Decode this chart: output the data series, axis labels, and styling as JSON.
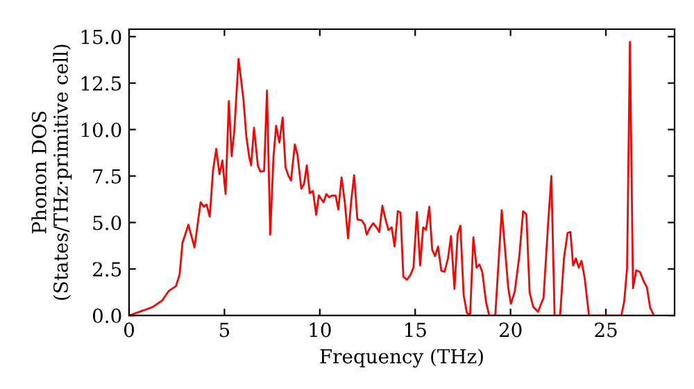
{
  "chart_data": {
    "type": "line",
    "xlabel": "Frequency (THz)",
    "ylabel": "Phonon DOS\n(States/THz·primitive cell)",
    "xlim": [
      0,
      28.6
    ],
    "ylim": [
      0,
      15.4
    ],
    "xticks": [
      0,
      5,
      10,
      15,
      20,
      25
    ],
    "yticks": [
      {
        "value": 0,
        "label": "0.0"
      },
      {
        "value": 2.5,
        "label": "2.5"
      },
      {
        "value": 5,
        "label": "5.0"
      },
      {
        "value": 7.5,
        "label": "7.5"
      },
      {
        "value": 10,
        "label": "10.0"
      },
      {
        "value": 12.5,
        "label": "12.5"
      },
      {
        "value": 15,
        "label": "15.0"
      }
    ],
    "grid": false,
    "marker": "none",
    "line_style": "solid",
    "series": [
      {
        "color": "#ff0000",
        "x": [
          0,
          0.75,
          1.24,
          1.73,
          2.09,
          2.46,
          2.65,
          2.8,
          3.11,
          3.43,
          3.75,
          3.92,
          4.06,
          4.23,
          4.4,
          4.57,
          4.74,
          4.89,
          5.06,
          5.23,
          5.38,
          5.52,
          5.74,
          5.99,
          6.15,
          6.3,
          6.4,
          6.55,
          6.75,
          6.88,
          7.08,
          7.23,
          7.4,
          7.57,
          7.71,
          7.88,
          8.05,
          8.2,
          8.34,
          8.49,
          8.69,
          8.83,
          9.03,
          9.17,
          9.32,
          9.47,
          9.64,
          9.81,
          9.95,
          10.05,
          10.2,
          10.34,
          10.49,
          10.64,
          10.83,
          10.97,
          11.14,
          11.31,
          11.48,
          11.65,
          11.8,
          11.97,
          12.19,
          12.35,
          12.46,
          12.63,
          12.8,
          12.97,
          13.12,
          13.28,
          13.43,
          13.6,
          13.77,
          13.92,
          14.09,
          14.23,
          14.38,
          14.57,
          14.74,
          14.91,
          15.09,
          15.26,
          15.42,
          15.57,
          15.74,
          15.89,
          16.04,
          16.2,
          16.37,
          16.54,
          16.72,
          16.88,
          17.06,
          17.23,
          17.37,
          17.54,
          17.71,
          17.88,
          18.05,
          18.22,
          18.37,
          18.52,
          18.71,
          18.88,
          19.2,
          19.54,
          19.88,
          20.02,
          20.22,
          20.46,
          20.66,
          20.83,
          21.0,
          21.19,
          21.44,
          21.73,
          21.97,
          22.14,
          22.31,
          22.6,
          22.8,
          22.99,
          23.14,
          23.28,
          23.43,
          23.58,
          23.72,
          23.89,
          24.11,
          25.81,
          25.96,
          26.11,
          26.26,
          26.42,
          26.59,
          26.79,
          26.98,
          27.15,
          27.32,
          27.52
        ],
        "values": [
          0,
          0.27,
          0.46,
          0.8,
          1.33,
          1.58,
          2.21,
          3.91,
          4.88,
          3.66,
          6.09,
          5.85,
          5.97,
          5.32,
          7.79,
          8.96,
          7.6,
          8.33,
          6.53,
          11.53,
          8.57,
          9.98,
          13.8,
          11.68,
          9.61,
          8.52,
          8.08,
          10.1,
          8.08,
          7.74,
          7.77,
          12.1,
          4.35,
          8.52,
          10.2,
          9.3,
          10.65,
          7.99,
          7.55,
          7.26,
          9.2,
          8.64,
          6.82,
          7.06,
          8.08,
          6.58,
          6.7,
          5.41,
          6.46,
          6.29,
          6.09,
          6.53,
          6.36,
          6.45,
          6.45,
          5.7,
          7.43,
          6.09,
          4.15,
          6.21,
          7.55,
          5.17,
          5.12,
          4.88,
          4.35,
          4.72,
          4.96,
          4.74,
          4.49,
          5.9,
          5.24,
          4.59,
          4.74,
          3.71,
          5.61,
          5.53,
          2.09,
          1.92,
          2.16,
          2.57,
          5.56,
          2.69,
          4.74,
          4.61,
          5.85,
          3.55,
          3.19,
          3.71,
          2.4,
          2.35,
          3.07,
          4.27,
          1.43,
          4.4,
          4.83,
          1.12,
          0.15,
          0,
          4.2,
          2.57,
          2.74,
          2.33,
          0.75,
          0,
          0,
          5.66,
          1.48,
          0.63,
          1.28,
          3.19,
          5.61,
          5.44,
          1.24,
          0.46,
          0.2,
          0.95,
          4.95,
          7.5,
          0,
          0,
          3.07,
          4.44,
          4.49,
          2.69,
          3.07,
          2.57,
          2.94,
          2.0,
          0,
          0,
          0.75,
          2.57,
          14.71,
          1.46,
          2.43,
          2.33,
          1.84,
          1.52,
          0.41,
          0
        ]
      }
    ]
  }
}
